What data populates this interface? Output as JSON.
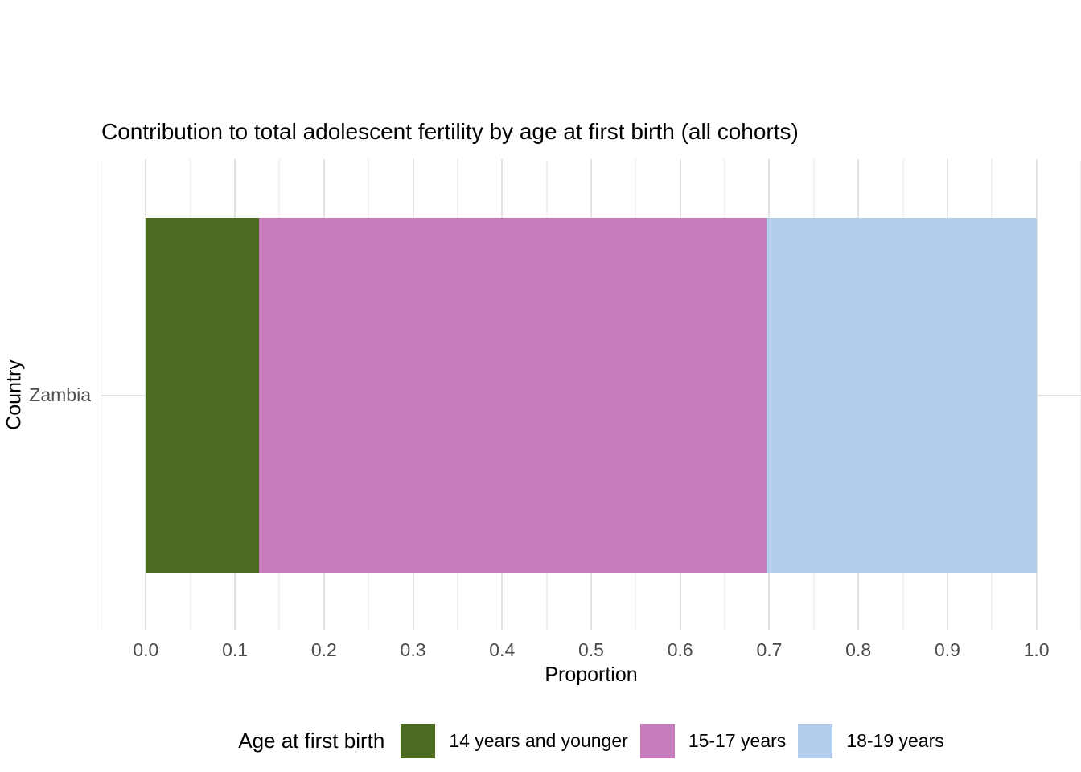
{
  "chart_data": {
    "type": "bar",
    "orientation": "horizontal",
    "stacked": true,
    "title": "Contribution to total adolescent fertility by age at first birth (all cohorts)",
    "xlabel": "Proportion",
    "ylabel": "Country",
    "categories": [
      "Zambia"
    ],
    "series": [
      {
        "name": "14 years and younger",
        "color": "#4C6B21",
        "values": [
          0.127
        ]
      },
      {
        "name": "15-17 years",
        "color": "#C57BBC",
        "values": [
          0.57
        ]
      },
      {
        "name": "18-19 years",
        "color": "#B5CDEC",
        "values": [
          0.303
        ]
      }
    ],
    "xlim": [
      0.0,
      1.0
    ],
    "xticks": [
      0.0,
      0.1,
      0.2,
      0.3,
      0.4,
      0.5,
      0.6,
      0.7,
      0.8,
      0.9,
      1.0
    ],
    "xtick_labels": [
      "0.0",
      "0.1",
      "0.2",
      "0.3",
      "0.4",
      "0.5",
      "0.6",
      "0.7",
      "0.8",
      "0.9",
      "1.0"
    ],
    "grid": true,
    "legend": {
      "title": "Age at first birth",
      "position": "bottom"
    }
  },
  "colors": {
    "background": "#FFFFFF",
    "grid_major": "#E3E3E3",
    "grid_minor": "#F2F2F2",
    "tick_text": "#4D4D4D",
    "title_text": "#000000"
  }
}
